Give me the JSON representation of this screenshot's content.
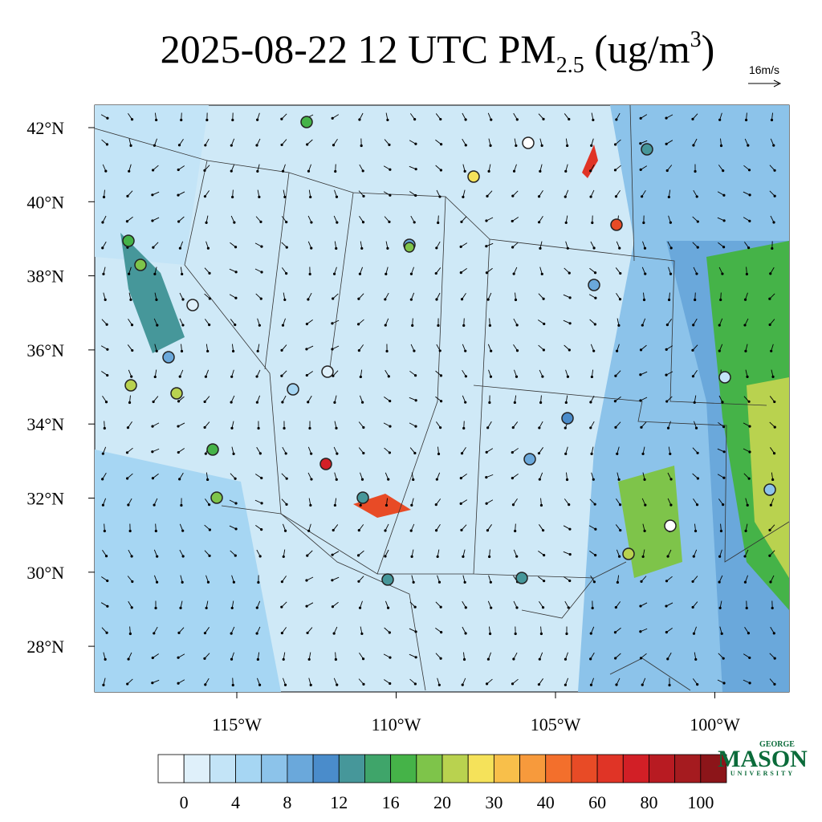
{
  "header": {
    "title_parts": [
      "2025-08-22 12 UTC PM",
      "2.5",
      " (ug/m",
      "3",
      ")"
    ],
    "vector_scale": "16m/s"
  },
  "map": {
    "lat_labels": [
      "42°N",
      "40°N",
      "38°N",
      "36°N",
      "34°N",
      "32°N",
      "30°N",
      "28°N"
    ],
    "lon_labels": [
      "115°W",
      "110°W",
      "105°W",
      "100°W"
    ]
  },
  "colorbar": {
    "colors": [
      "#ffffff",
      "#dff0fa",
      "#c3e4f7",
      "#a6d6f3",
      "#8cc3ea",
      "#6aa8db",
      "#4a8ccb",
      "#46979a",
      "#3fa56a",
      "#45b348",
      "#7ec44a",
      "#b9d24f",
      "#f5e25a",
      "#f8bf4a",
      "#f79a3c",
      "#f36f2c",
      "#e84b26",
      "#e03426",
      "#d21f26",
      "#b81b22",
      "#a51b1f",
      "#8c1519"
    ],
    "labels": [
      "0",
      "4",
      "8",
      "12",
      "16",
      "20",
      "30",
      "40",
      "60",
      "80",
      "100"
    ]
  },
  "logo": {
    "top": "GEORGE",
    "name": "MASON",
    "bottom": "UNIVERSITY"
  }
}
